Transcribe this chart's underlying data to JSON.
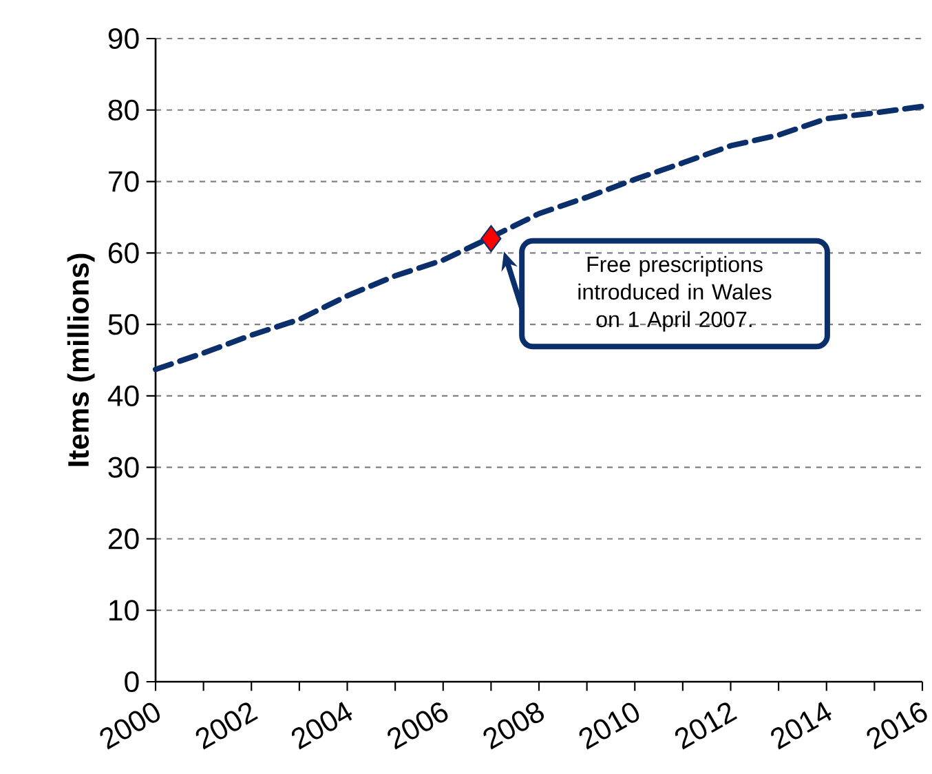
{
  "chart_data": {
    "type": "line",
    "ylabel": "Items (millions)",
    "x": [
      2000,
      2001,
      2002,
      2003,
      2004,
      2005,
      2006,
      2007,
      2008,
      2009,
      2010,
      2011,
      2012,
      2013,
      2014,
      2015,
      2016
    ],
    "series": [
      {
        "color": "#0b2f6b",
        "line_style": "dashed",
        "marker": "none",
        "values": [
          43.7,
          46,
          48.5,
          50.7,
          54,
          56.8,
          59,
          62.2,
          65.5,
          67.8,
          70.3,
          72.6,
          75,
          76.5,
          78.8,
          79.6,
          80.5
        ]
      },
      {
        "type": "scatter",
        "color": "#ff0000",
        "marker": "diamond",
        "x": [
          2007
        ],
        "values": [
          62
        ]
      }
    ],
    "xlim": [
      2000,
      2016
    ],
    "xticks": [
      2000,
      {
        "value": 2001,
        "label": null
      },
      2002,
      {
        "value": 2003,
        "label": null
      },
      2004,
      {
        "value": 2005,
        "label": null
      },
      2006,
      {
        "value": 2007,
        "label": null
      },
      2008,
      {
        "value": 2009,
        "label": null
      },
      2010,
      {
        "value": 2011,
        "label": null
      },
      2012,
      {
        "value": 2013,
        "label": null
      },
      2014,
      {
        "value": 2015,
        "label": null
      },
      2016
    ],
    "ylim": [
      0,
      90
    ],
    "yticks": [
      0,
      10,
      20,
      30,
      40,
      50,
      60,
      70,
      80,
      90
    ],
    "grid": "y",
    "annotations": [
      "Free prescriptions introduced in Wales on 1 April 2007."
    ]
  }
}
